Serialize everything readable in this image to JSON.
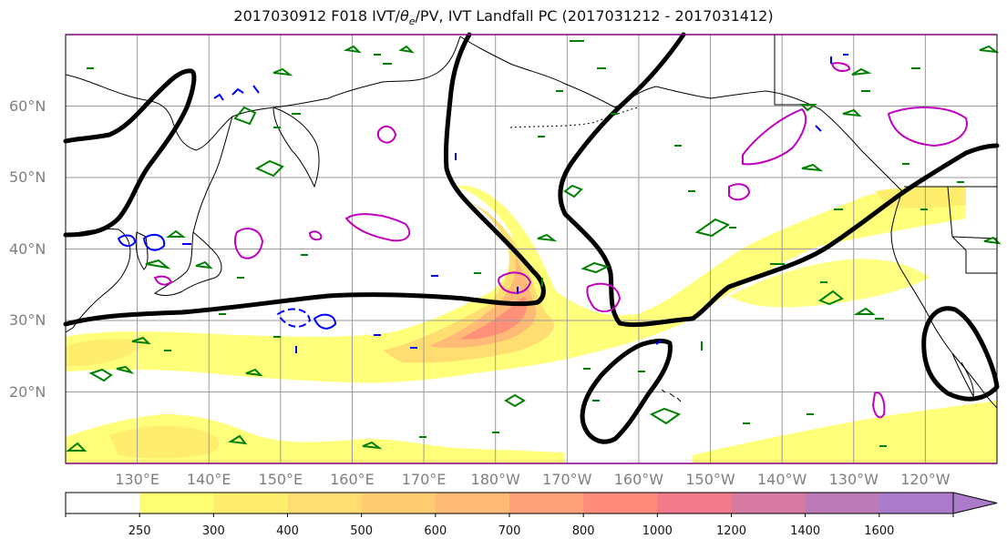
{
  "title_main": "2017030912 F018 IVT/",
  "title_theta": "θ",
  "title_theta_sub": "e",
  "title_rest": "/PV, IVT Landfall PC (2017031212 - 2017031412)",
  "map": {
    "lat_labels": [
      "60°N",
      "50°N",
      "40°N",
      "30°N",
      "20°N"
    ],
    "lat_values": [
      60,
      50,
      40,
      30,
      20
    ],
    "lon_labels": [
      "130°E",
      "140°E",
      "150°E",
      "160°E",
      "170°E",
      "180°W",
      "170°W",
      "160°W",
      "150°W",
      "140°W",
      "130°W",
      "120°W"
    ],
    "lon_values": [
      130,
      140,
      150,
      160,
      170,
      180,
      190,
      200,
      210,
      220,
      230,
      240
    ],
    "lat_range": [
      10,
      70
    ],
    "lon_range": [
      120,
      250
    ]
  },
  "colorbar": {
    "levels": [
      250,
      300,
      400,
      500,
      600,
      700,
      800,
      1000,
      1200,
      1400,
      1600
    ],
    "labels": [
      "250",
      "300",
      "400",
      "500",
      "600",
      "700",
      "800",
      "1000",
      "1200",
      "1400",
      "1600"
    ],
    "colors": [
      "#ffffff",
      "#ffff73",
      "#ffee6e",
      "#ffdd70",
      "#ffcc72",
      "#ffba76",
      "#ffa178",
      "#ff8c7a",
      "#f07a8c",
      "#d67aa0",
      "#bb7bb8",
      "#a97bc8"
    ]
  },
  "contour_colors": {
    "ivt_landfall_pc": "#000000",
    "pv_positive": "#008000",
    "pv_negative": "#0000ff",
    "theta_e": "#bf00bf"
  }
}
